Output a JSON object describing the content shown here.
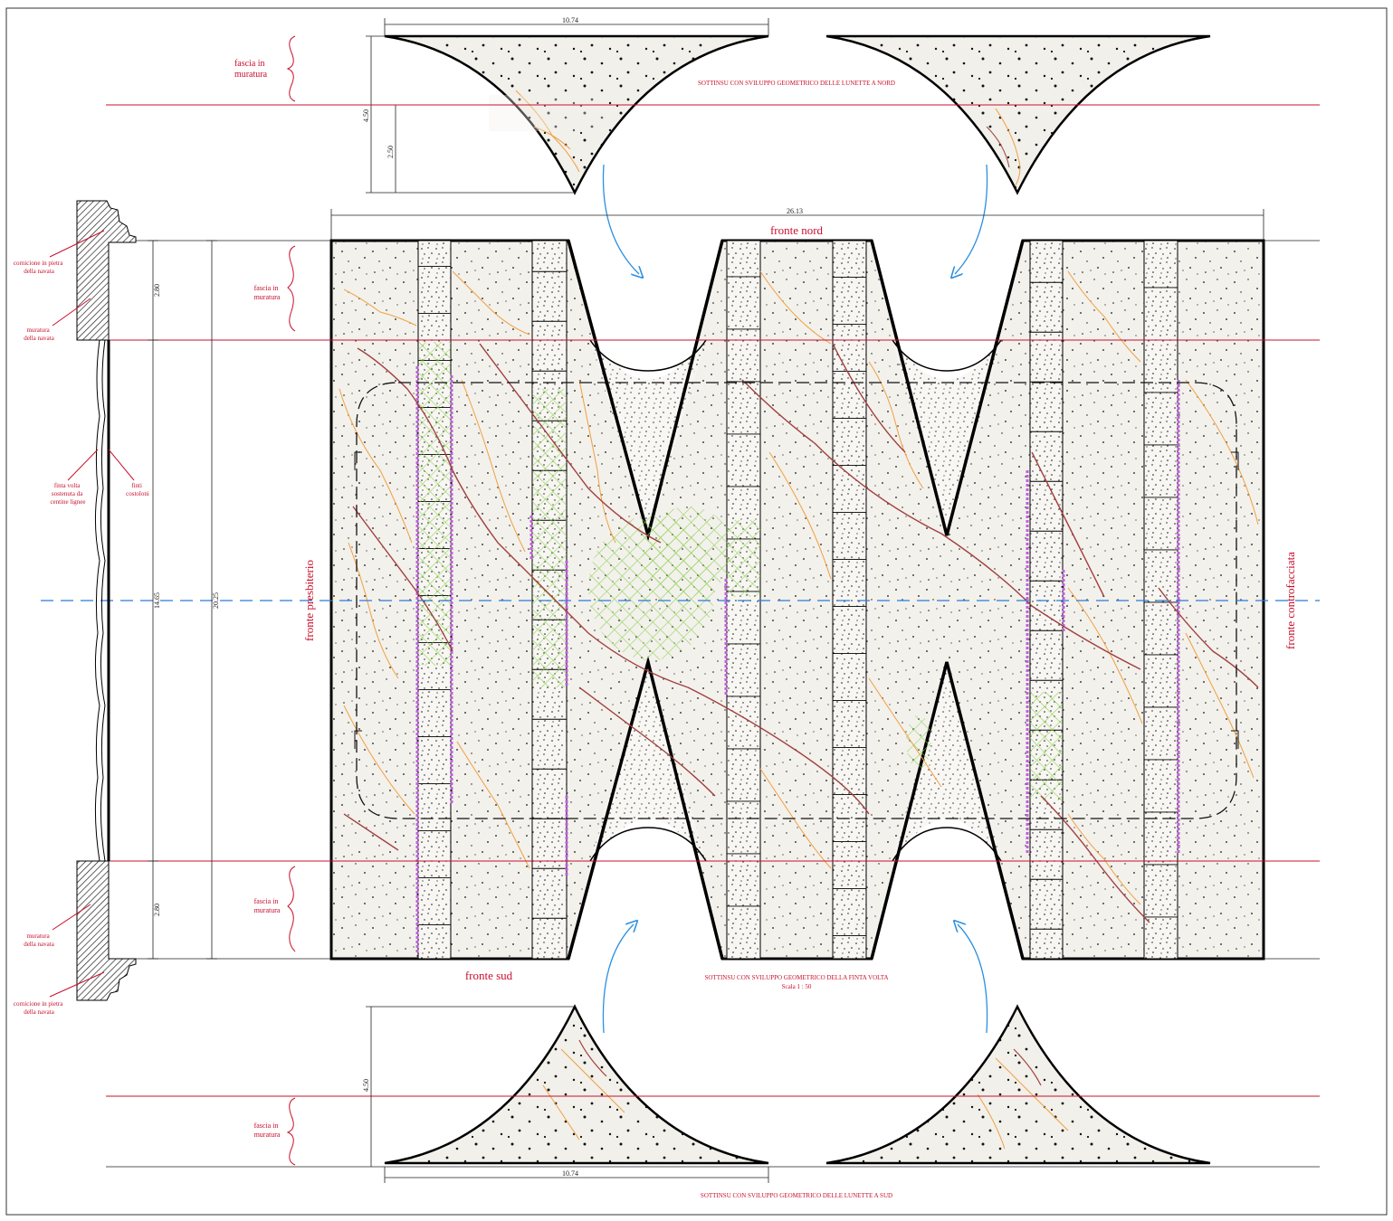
{
  "titles": {
    "lunette_nord": "SOTTINSU CON SVILUPPO GEOMETRICO DELLE LUNETTE A NORD",
    "finta_volta": "SOTTINSU CON SVILUPPO GEOMETRICO DELLA FINTA VOLTA",
    "scale": "Scala 1 : 50",
    "lunette_sud": "SOTTINSU CON SVILUPPO GEOMETRICO DELLE LUNETTE A SUD"
  },
  "fronts": {
    "nord": "fronte  nord",
    "sud": "fronte  sud",
    "presbiterio": "fronte  presbiterio",
    "controfacciata": "fronte  controfacciata"
  },
  "labels": {
    "fascia_top_1": "fascia in",
    "fascia_top_2": "muratura",
    "fascia_mid_1": "fascia in",
    "fascia_mid_2": "muratura",
    "fascia_low_1": "fascia in",
    "fascia_low_2": "muratura",
    "fascia_bot_1": "fascia in",
    "fascia_bot_2": "muratura",
    "cornicione_top_1": "cornicione in pietra",
    "cornicione_top_2": "della navata",
    "muratura_top_1": "muratura",
    "muratura_top_2": "della navata",
    "finta_volta_1": "finta volta",
    "finta_volta_2": "sostenuta da",
    "finta_volta_3": "centine lignee",
    "finti_1": "finti",
    "finti_2": "costoloni",
    "muratura_bot_1": "muratura",
    "muratura_bot_2": "della navata",
    "cornicione_bot_1": "cornicione in pietra",
    "cornicione_bot_2": "della navata"
  },
  "dimensions": {
    "lunette_width_top": "10.74",
    "lunette_height_top": "4.50",
    "lunette_sub_top": "2.50",
    "vault_width": "26.13",
    "band_top": "2.80",
    "vault_center": "14.65",
    "total_height": "20.25",
    "band_bottom": "2.80",
    "lunette_height_bottom": "4.50",
    "lunette_width_bottom": "10.74"
  },
  "colors": {
    "annotation_red": "#c8102e",
    "axis_blue": "#2b7bd6",
    "arrow_blue": "#2b8fe0",
    "crack_orange": "#f0a040",
    "crack_brown": "#a04040",
    "moss_green": "#8cd050",
    "edge_purple": "#c060e0",
    "plaster": "#f3f1ec",
    "hatch": "#333333"
  }
}
